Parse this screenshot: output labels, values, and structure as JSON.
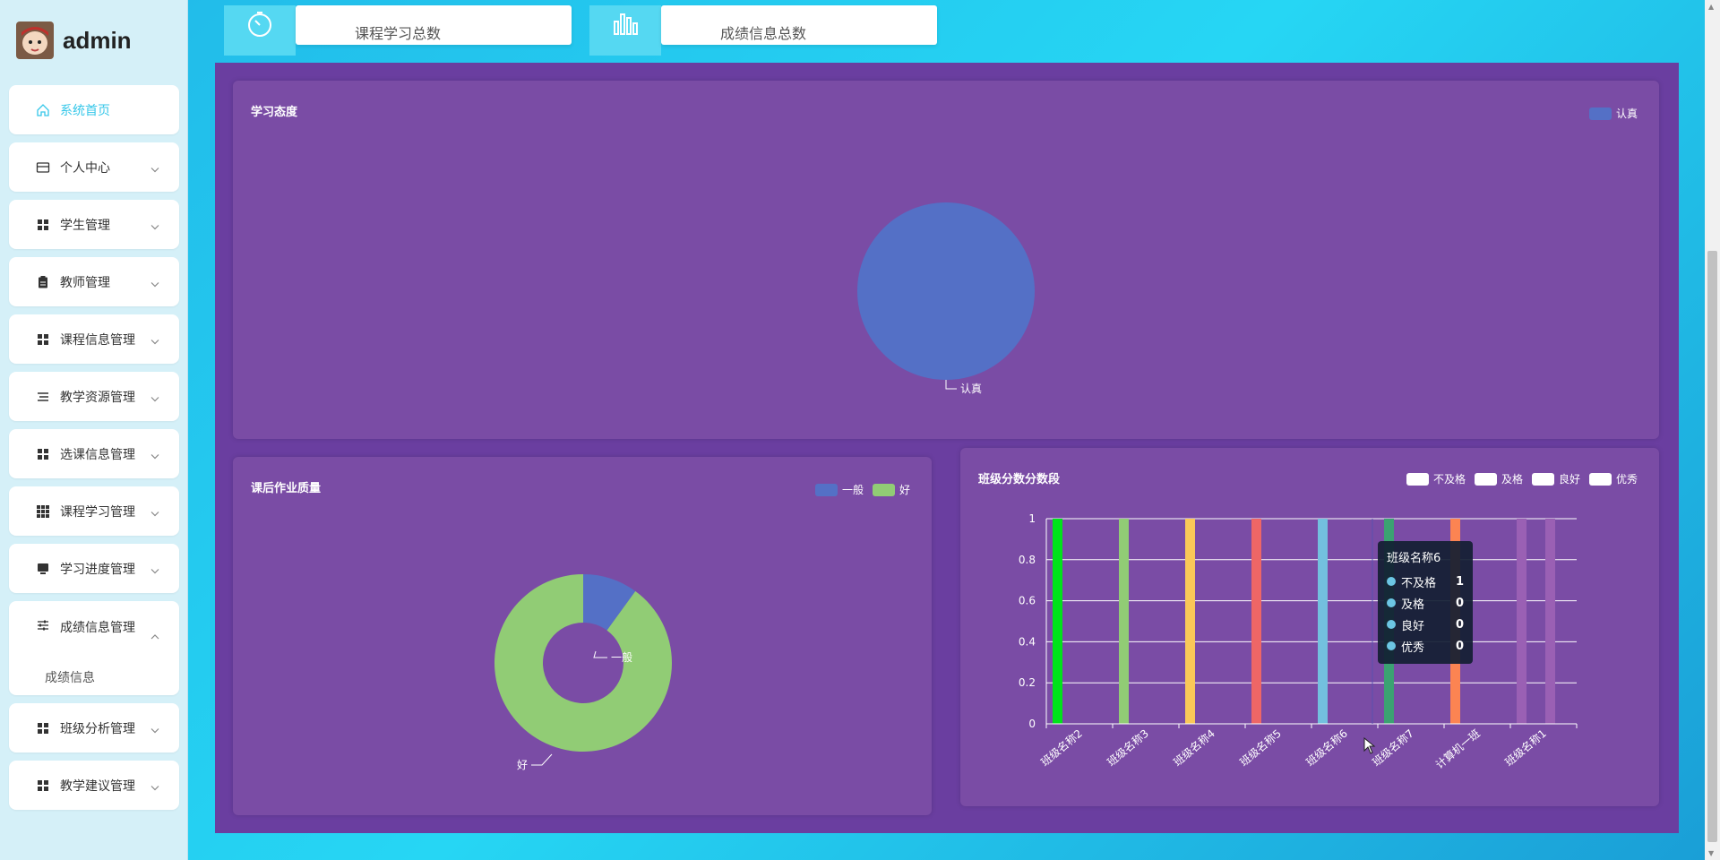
{
  "brand": {
    "name": "admin"
  },
  "sidebar": {
    "items": [
      {
        "label": "系统首页",
        "icon": "home-icon",
        "active": true
      },
      {
        "label": "个人中心",
        "icon": "card-icon"
      },
      {
        "label": "学生管理",
        "icon": "grid-icon"
      },
      {
        "label": "教师管理",
        "icon": "clipboard-icon"
      },
      {
        "label": "课程信息管理",
        "icon": "grid-icon"
      },
      {
        "label": "教学资源管理",
        "icon": "list-icon"
      },
      {
        "label": "选课信息管理",
        "icon": "grid-icon"
      },
      {
        "label": "课程学习管理",
        "icon": "apps-icon"
      },
      {
        "label": "学习进度管理",
        "icon": "monitor-icon"
      },
      {
        "label": "成绩信息管理",
        "icon": "sliders-icon",
        "expanded": true,
        "sub": [
          "成绩信息"
        ]
      },
      {
        "label": "班级分析管理",
        "icon": "grid-icon"
      },
      {
        "label": "教学建议管理",
        "icon": "grid-icon"
      }
    ]
  },
  "stats": [
    {
      "label": "课程学习总数",
      "icon": "timer-icon"
    },
    {
      "label": "成绩信息总数",
      "icon": "bar-chart-icon"
    }
  ],
  "colors": {
    "panel_bg": "#6a3ea0",
    "card_bg": "#7a4ca5",
    "accent": "#35c7e9"
  },
  "chart_data": [
    {
      "type": "pie",
      "title": "学习态度",
      "legend": [
        "认真"
      ],
      "slices": [
        {
          "name": "认真",
          "value": 1,
          "color": "#5470c6"
        }
      ],
      "legend_position": "top-right"
    },
    {
      "type": "pie",
      "title": "课后作业质量",
      "donut": true,
      "legend": [
        "一般",
        "好"
      ],
      "slices": [
        {
          "name": "一般",
          "value": 1,
          "color": "#5470c6"
        },
        {
          "name": "好",
          "value": 9,
          "color": "#91cc75"
        }
      ],
      "legend_position": "top-right"
    },
    {
      "type": "bar",
      "title": "班级分数分数段",
      "legend": [
        "不及格",
        "及格",
        "良好",
        "优秀"
      ],
      "categories": [
        "班级名称2",
        "班级名称3",
        "班级名称4",
        "班级名称5",
        "班级名称6",
        "班级名称7",
        "计算机一班",
        "班级名称1"
      ],
      "bar_colors": [
        "#00e31a",
        "#91cc75",
        "#fac858",
        "#ee6666",
        "#73c0de",
        "#3ba272",
        "#fc8452",
        "#9a60b4"
      ],
      "series": [
        {
          "name": "不及格",
          "values": [
            1,
            1,
            1,
            1,
            1,
            1,
            1,
            1
          ]
        },
        {
          "name": "及格",
          "values": [
            0,
            0,
            0,
            0,
            0,
            0,
            0,
            1
          ]
        },
        {
          "name": "良好",
          "values": [
            0,
            0,
            0,
            0,
            0,
            0,
            0,
            0
          ]
        },
        {
          "name": "优秀",
          "values": [
            0,
            0,
            0,
            0,
            0,
            0,
            0,
            0
          ]
        }
      ],
      "yticks": [
        "0",
        "0.2",
        "0.4",
        "0.6",
        "0.8",
        "1"
      ],
      "ylim": [
        0,
        1
      ],
      "grid": true,
      "legend_position": "top-right",
      "tooltip": {
        "title": "班级名称6",
        "rows": [
          {
            "name": "不及格",
            "value": "1"
          },
          {
            "name": "及格",
            "value": "0"
          },
          {
            "name": "良好",
            "value": "0"
          },
          {
            "name": "优秀",
            "value": "0"
          }
        ]
      }
    }
  ]
}
